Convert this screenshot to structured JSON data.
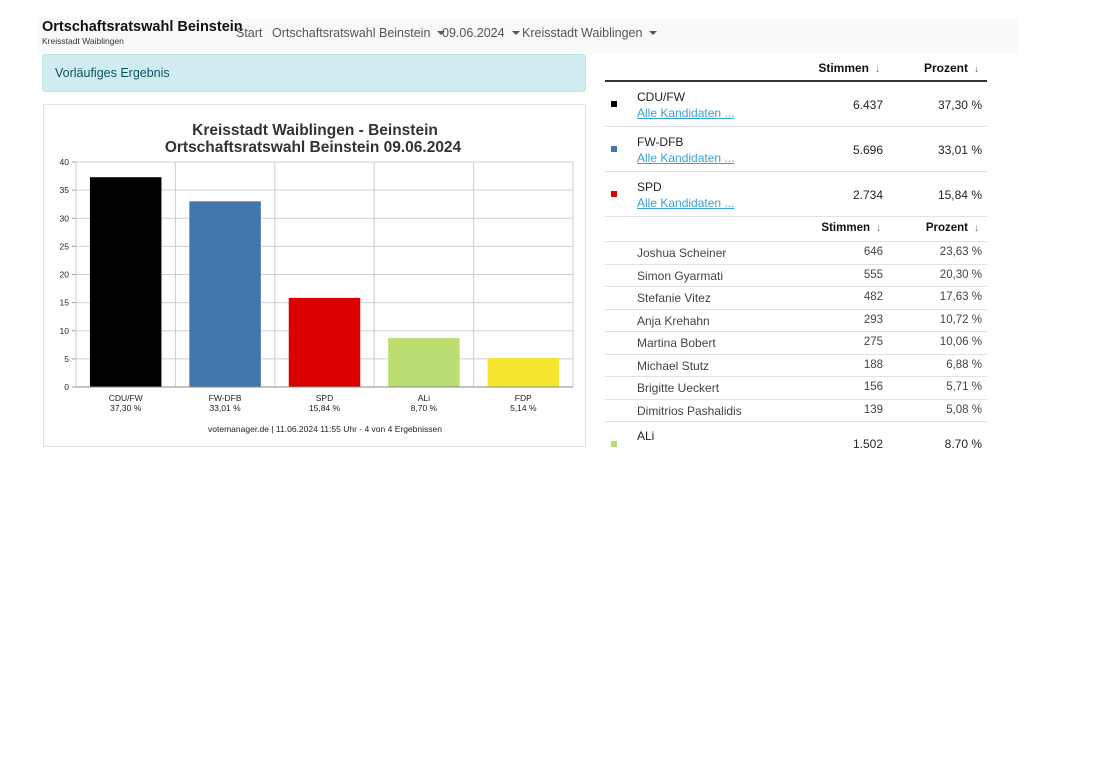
{
  "navbar": {
    "brand_title": "Ortschaftsratswahl Beinstein",
    "brand_subtitle": "Kreisstadt Waiblingen",
    "items": [
      {
        "label": "Start"
      },
      {
        "label": "Ortschaftsratswahl Beinstein"
      },
      {
        "label": "09.06.2024"
      },
      {
        "label": "Kreisstadt Waiblingen"
      }
    ]
  },
  "alert": {
    "text": "Vorläufiges Ergebnis"
  },
  "chart_data": {
    "type": "bar",
    "title": "Kreisstadt Waiblingen - Beinstein",
    "subtitle": "Ortschaftsratswahl Beinstein 09.06.2024",
    "categories": [
      "CDU/FW",
      "FW-DFB",
      "SPD",
      "ALi",
      "FDP"
    ],
    "category_percent_labels": [
      "37,30 %",
      "33,01 %",
      "15,84 %",
      "8,70 %",
      "5,14 %"
    ],
    "values": [
      37.3,
      33.01,
      15.84,
      8.7,
      5.14
    ],
    "colors": [
      "#000000",
      "#4277ac",
      "#dd0000",
      "#bbdd72",
      "#f5e72e"
    ],
    "ylim": [
      0,
      40
    ],
    "yticks": [
      "0",
      "5",
      "10",
      "15",
      "20",
      "25",
      "30",
      "35",
      "40"
    ],
    "xlabel": "",
    "ylabel": "",
    "grid": true,
    "footer": "votemanager.de | 11.06.2024 11:55 Uhr - 4 von 4 Ergebnissen"
  },
  "table": {
    "col_votes": "Stimmen",
    "col_percent": "Prozent",
    "sort_icon": "↓",
    "all_candidates_label": "Alle Kandidaten ...",
    "parties": [
      {
        "name": "CDU/FW",
        "votes": "6.437",
        "percent": "37,30 %",
        "color": "#000000"
      },
      {
        "name": "FW-DFB",
        "votes": "5.696",
        "percent": "33,01 %",
        "color": "#4277ac"
      },
      {
        "name": "SPD",
        "votes": "2.734",
        "percent": "15,84 %",
        "color": "#dd0000"
      }
    ],
    "candidates": [
      {
        "name": "Joshua Scheiner",
        "votes": "646",
        "percent": "23,63 %"
      },
      {
        "name": "Simon Gyarmati",
        "votes": "555",
        "percent": "20,30 %"
      },
      {
        "name": "Stefanie Vitez",
        "votes": "482",
        "percent": "17,63 %"
      },
      {
        "name": "Anja Krehahn",
        "votes": "293",
        "percent": "10,72 %"
      },
      {
        "name": "Martina Bobert",
        "votes": "275",
        "percent": "10,06 %"
      },
      {
        "name": "Michael Stutz",
        "votes": "188",
        "percent": "6,88 %"
      },
      {
        "name": "Brigitte Ueckert",
        "votes": "156",
        "percent": "5,71 %"
      },
      {
        "name": "Dimitrios Pashalidis",
        "votes": "139",
        "percent": "5,08 %"
      }
    ],
    "last_party": {
      "name": "ALi",
      "votes": "1.502",
      "percent": "8.70 %",
      "color": "#bbdd72"
    }
  }
}
